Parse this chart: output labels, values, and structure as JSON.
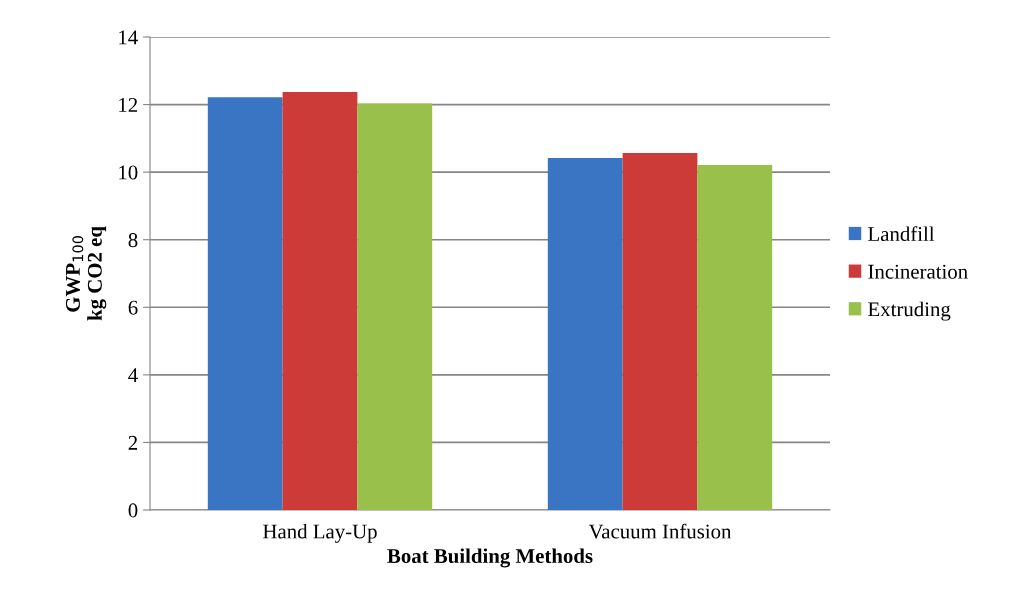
{
  "chart_data": {
    "type": "bar",
    "xlabel": "Boat Building Methods",
    "ylabel": "GWP$_{100}$\nkg CO2 eq",
    "categories": [
      "Hand Lay-Up",
      "Vacuum Infusion"
    ],
    "series": [
      {
        "name": "Landfill",
        "color": "#3a75c4",
        "values": [
          12.22,
          10.42
        ]
      },
      {
        "name": "Incineration",
        "color": "#cc3b37",
        "values": [
          12.37,
          10.57
        ]
      },
      {
        "name": "Extruding",
        "color": "#98c04a",
        "values": [
          12.03,
          10.21
        ]
      }
    ],
    "ylim": [
      0,
      14
    ],
    "yticks": [
      0,
      2,
      4,
      6,
      8,
      10,
      12,
      14
    ],
    "grid": "y",
    "legend": "right"
  }
}
